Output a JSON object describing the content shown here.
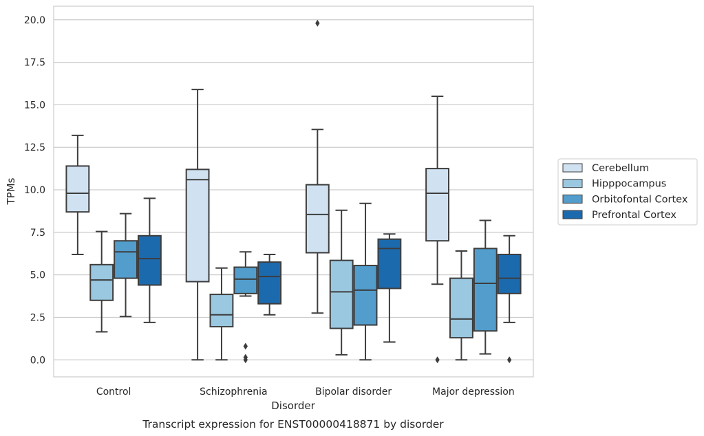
{
  "caption": "Transcript expression for ENST00000418871 by disorder",
  "chart_data": {
    "type": "box",
    "xlabel": "Disorder",
    "ylabel": "TPMs",
    "ylim": [
      -1.0,
      20.8
    ],
    "yticks": [
      "0.0",
      "2.5",
      "5.0",
      "7.5",
      "10.0",
      "12.5",
      "15.0",
      "17.5",
      "20.0"
    ],
    "categories": [
      "Control",
      "Schizophrenia",
      "Bipolar disorder",
      "Major depression"
    ],
    "grid": "horizontal",
    "legend_position": "right",
    "series": [
      {
        "name": "Cerebellum",
        "color": "#d0e2f2",
        "boxes": [
          {
            "whislo": 6.2,
            "q1": 8.7,
            "med": 9.8,
            "q3": 11.4,
            "whishi": 13.2,
            "fliers": []
          },
          {
            "whislo": 0.0,
            "q1": 4.6,
            "med": 10.6,
            "q3": 11.2,
            "whishi": 15.9,
            "fliers": []
          },
          {
            "whislo": 2.75,
            "q1": 6.3,
            "med": 8.55,
            "q3": 10.3,
            "whishi": 13.55,
            "fliers": [
              19.8
            ]
          },
          {
            "whislo": 4.45,
            "q1": 7.0,
            "med": 9.8,
            "q3": 11.25,
            "whishi": 15.5,
            "fliers": [
              0.0
            ]
          }
        ]
      },
      {
        "name": "Hipppocampus",
        "color": "#9ac8e0",
        "boxes": [
          {
            "whislo": 1.65,
            "q1": 3.5,
            "med": 4.7,
            "q3": 5.6,
            "whishi": 7.55,
            "fliers": []
          },
          {
            "whislo": 0.0,
            "q1": 1.95,
            "med": 2.65,
            "q3": 3.85,
            "whishi": 5.4,
            "fliers": []
          },
          {
            "whislo": 0.3,
            "q1": 1.85,
            "med": 4.0,
            "q3": 5.85,
            "whishi": 8.8,
            "fliers": []
          },
          {
            "whislo": 0.0,
            "q1": 1.3,
            "med": 2.4,
            "q3": 4.8,
            "whishi": 6.4,
            "fliers": []
          }
        ]
      },
      {
        "name": "Orbitofontal Cortex",
        "color": "#529dcc",
        "boxes": [
          {
            "whislo": 2.55,
            "q1": 4.8,
            "med": 6.35,
            "q3": 7.0,
            "whishi": 8.6,
            "fliers": []
          },
          {
            "whislo": 3.75,
            "q1": 3.9,
            "med": 4.75,
            "q3": 5.45,
            "whishi": 6.35,
            "fliers": [
              0.8,
              0.15,
              0.0
            ]
          },
          {
            "whislo": 0.0,
            "q1": 2.05,
            "med": 4.1,
            "q3": 5.55,
            "whishi": 9.2,
            "fliers": []
          },
          {
            "whislo": 0.35,
            "q1": 1.7,
            "med": 4.5,
            "q3": 6.55,
            "whishi": 8.2,
            "fliers": []
          }
        ]
      },
      {
        "name": "Prefrontal Cortex",
        "color": "#1c6aae",
        "boxes": [
          {
            "whislo": 2.2,
            "q1": 4.4,
            "med": 5.95,
            "q3": 7.3,
            "whishi": 9.5,
            "fliers": []
          },
          {
            "whislo": 2.65,
            "q1": 3.3,
            "med": 4.9,
            "q3": 5.75,
            "whishi": 6.2,
            "fliers": []
          },
          {
            "whislo": 1.05,
            "q1": 4.2,
            "med": 6.55,
            "q3": 7.1,
            "whishi": 7.4,
            "fliers": []
          },
          {
            "whislo": 2.2,
            "q1": 3.9,
            "med": 4.8,
            "q3": 6.2,
            "whishi": 7.3,
            "fliers": [
              0.0
            ]
          }
        ]
      }
    ]
  }
}
